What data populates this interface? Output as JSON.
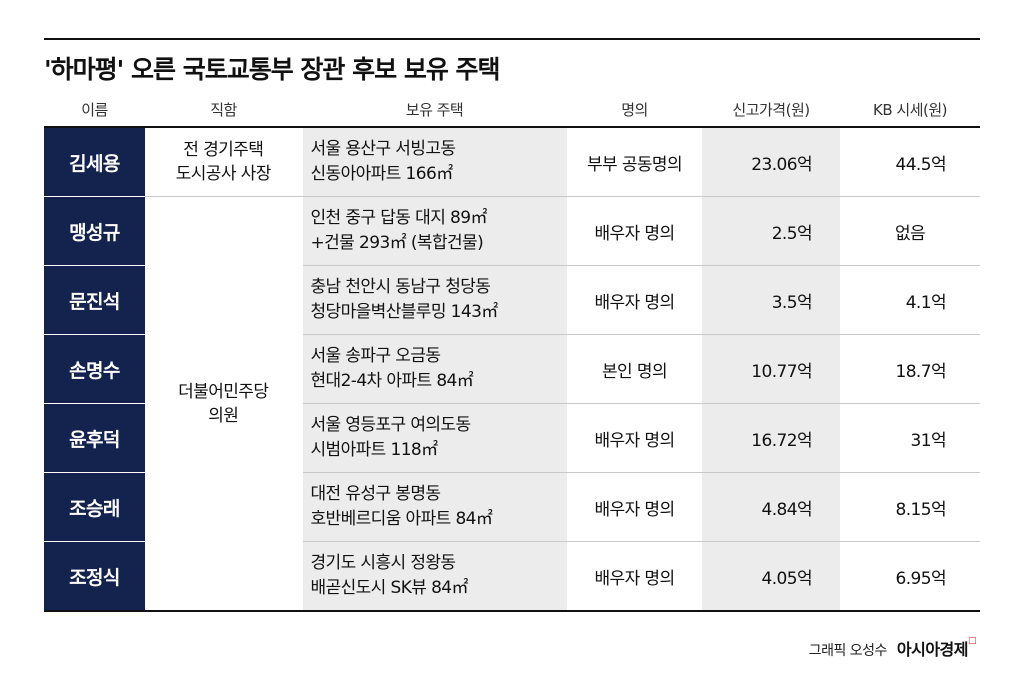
{
  "title": "'하마평' 오른 국토교통부 장관 후보 보유 주택",
  "headers": [
    "이름",
    "직함",
    "보유 주택",
    "명의",
    "신고가격(원)",
    "KB 시세(원)"
  ],
  "rows": [
    {
      "name": "김세용",
      "position": [
        "전 경기주택",
        "도시공사 사장"
      ],
      "house": [
        "서울 용산구 서빙고동",
        "신동아아파트 166㎡"
      ],
      "owner": "부부 공동명의",
      "declared": "23.06억",
      "kb": "44.5억"
    },
    {
      "name": "맹성규",
      "house": [
        "인천 중구 답동 대지 89㎡",
        "+건물 293㎡ (복합건물)"
      ],
      "owner": "배우자 명의",
      "declared": "2.5억",
      "kb": "없음"
    },
    {
      "name": "문진석",
      "house": [
        "충남 천안시 동남구 청당동",
        "청당마을벽산블루밍 143㎡"
      ],
      "owner": "배우자 명의",
      "declared": "3.5억",
      "kb": "4.1억"
    },
    {
      "name": "손명수",
      "house": [
        "서울 송파구 오금동",
        "현대2-4차 아파트 84㎡"
      ],
      "owner": "본인 명의",
      "declared": "10.77억",
      "kb": "18.7억"
    },
    {
      "name": "윤후덕",
      "house": [
        "서울 영등포구 여의도동",
        "시범아파트 118㎡"
      ],
      "owner": "배우자 명의",
      "declared": "16.72억",
      "kb": "31억"
    },
    {
      "name": "조승래",
      "house": [
        "대전 유성구 봉명동",
        "호반베르디움 아파트 84㎡"
      ],
      "owner": "배우자 명의",
      "declared": "4.84억",
      "kb": "8.15억"
    },
    {
      "name": "조정식",
      "house": [
        "경기도 시흥시 정왕동",
        "배곧신도시 SK뷰 84㎡"
      ],
      "owner": "배우자 명의",
      "declared": "4.05억",
      "kb": "6.95억"
    }
  ],
  "shared_position": [
    "더불어민주당",
    "의원"
  ],
  "footer": {
    "credit": "그래픽 오성수",
    "brand": "아시아경제"
  },
  "colors": {
    "name_cell": "#14224e",
    "house_cell": "#ececec",
    "brand_mark": "#d21f2b"
  }
}
